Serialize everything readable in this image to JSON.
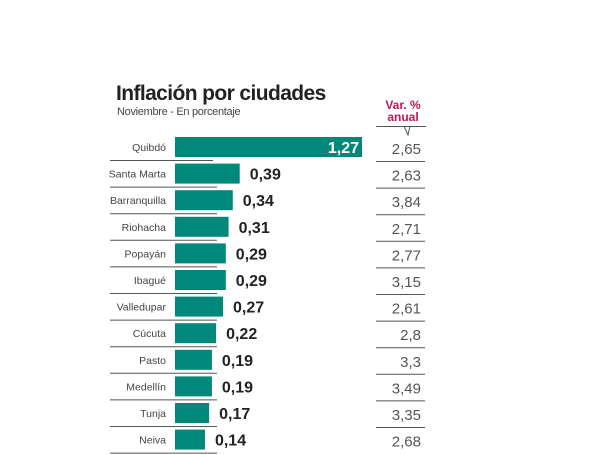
{
  "chart_data": {
    "type": "bar",
    "orientation": "horizontal",
    "title": "Inflación por ciudades",
    "subtitle": "Noviembre - En porcentaje",
    "categories": [
      "Quibdó",
      "Santa Marta",
      "Barranquilla",
      "Riohacha",
      "Popayán",
      "Ibagué",
      "Valledupar",
      "Cúcuta",
      "Pasto",
      "Medellín",
      "Tunja",
      "Neiva"
    ],
    "values": [
      1.27,
      0.39,
      0.34,
      0.31,
      0.29,
      0.29,
      0.27,
      0.22,
      0.19,
      0.19,
      0.17,
      0.14
    ],
    "value_labels": [
      "1,27",
      "0,39",
      "0,34",
      "0,31",
      "0,29",
      "0,29",
      "0,27",
      "0,22",
      "0,19",
      "0,19",
      "0,17",
      "0,14"
    ],
    "secondary_column": {
      "header": "Var. % anual",
      "header_lines": [
        "Var. %",
        "anual"
      ],
      "values": [
        "2,65",
        "2,63",
        "3,84",
        "2,71",
        "2,77",
        "3,15",
        "2,61",
        "2,8",
        "3,3",
        "3,49",
        "3,35",
        "2,68"
      ]
    },
    "bar_color": "#00897b",
    "header_color": "#c0175d",
    "grid": false,
    "legend": "none"
  }
}
